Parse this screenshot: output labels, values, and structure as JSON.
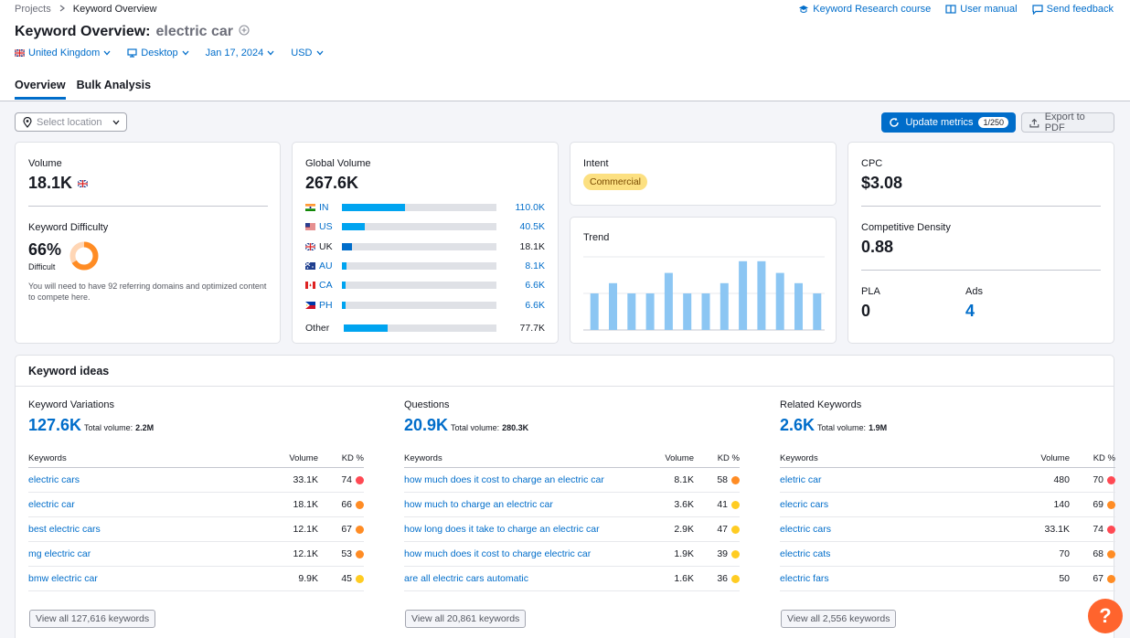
{
  "breadcrumb": {
    "root": "Projects",
    "current": "Keyword Overview"
  },
  "toplinks": {
    "course": "Keyword Research course",
    "manual": "User manual",
    "feedback": "Send feedback"
  },
  "header": {
    "title": "Keyword Overview:",
    "keyword": "electric car"
  },
  "filters": {
    "country": "United Kingdom",
    "device": "Desktop",
    "date": "Jan 17, 2024",
    "currency": "USD"
  },
  "tabs": [
    {
      "label": "Overview"
    },
    {
      "label": "Bulk Analysis"
    }
  ],
  "toolbar": {
    "location_placeholder": "Select location",
    "update_label": "Update metrics",
    "update_count": "1/250",
    "export_label": "Export to PDF"
  },
  "volume": {
    "label": "Volume",
    "value": "18.1K"
  },
  "difficulty": {
    "label": "Keyword Difficulty",
    "value": "66%",
    "value_pct": 66,
    "level": "Difficult",
    "note": "You will need to have 92 referring domains and optimized content to compete here."
  },
  "global_volume": {
    "label": "Global Volume",
    "value": "267.6K",
    "rows": [
      {
        "code": "IN",
        "value": "110.0K",
        "fraction": 0.41,
        "color": "#00a4f0"
      },
      {
        "code": "US",
        "value": "40.5K",
        "fraction": 0.15,
        "color": "#00a4f0"
      },
      {
        "code": "UK",
        "value": "18.1K",
        "fraction": 0.065,
        "color": "#006dca"
      },
      {
        "code": "AU",
        "value": "8.1K",
        "fraction": 0.03,
        "color": "#00a4f0"
      },
      {
        "code": "CA",
        "value": "6.6K",
        "fraction": 0.025,
        "color": "#00a4f0"
      },
      {
        "code": "PH",
        "value": "6.6K",
        "fraction": 0.025,
        "color": "#00a4f0"
      }
    ],
    "other": {
      "label": "Other",
      "value": "77.7K",
      "fraction": 0.29
    }
  },
  "intent": {
    "label": "Intent",
    "value": "Commercial"
  },
  "trend": {
    "label": "Trend",
    "values": [
      0.5,
      0.64,
      0.5,
      0.5,
      0.78,
      0.5,
      0.5,
      0.64,
      0.94,
      0.94,
      0.78,
      0.64,
      0.5
    ]
  },
  "cpc": {
    "label": "CPC",
    "value": "$3.08"
  },
  "density": {
    "label": "Competitive Density",
    "value": "0.88"
  },
  "pla": {
    "label": "PLA",
    "value": "0"
  },
  "ads": {
    "label": "Ads",
    "value": "4"
  },
  "ideas": {
    "title": "Keyword ideas",
    "columns": [
      {
        "title": "Keyword Variations",
        "count": "127.6K",
        "total_label": "Total volume:",
        "total": "2.2M",
        "h_kw": "Keywords",
        "h_vol": "Volume",
        "h_kd": "KD %",
        "rows": [
          {
            "kw": "electric cars",
            "vol": "33.1K",
            "kd": "74",
            "color": "#ff4953"
          },
          {
            "kw": "electric car",
            "vol": "18.1K",
            "kd": "66",
            "color": "#ff8c24"
          },
          {
            "kw": "best electric cars",
            "vol": "12.1K",
            "kd": "67",
            "color": "#ff8c24"
          },
          {
            "kw": "mg electric car",
            "vol": "12.1K",
            "kd": "53",
            "color": "#ff8c24"
          },
          {
            "kw": "bmw electric car",
            "vol": "9.9K",
            "kd": "45",
            "color": "#ffcc22"
          }
        ],
        "view_all": "View all 127,616 keywords"
      },
      {
        "title": "Questions",
        "count": "20.9K",
        "total_label": "Total volume:",
        "total": "280.3K",
        "h_kw": "Keywords",
        "h_vol": "Volume",
        "h_kd": "KD %",
        "rows": [
          {
            "kw": "how much does it cost to charge an electric car",
            "vol": "8.1K",
            "kd": "58",
            "color": "#ff8c24"
          },
          {
            "kw": "how much to charge an electric car",
            "vol": "3.6K",
            "kd": "41",
            "color": "#ffcc22"
          },
          {
            "kw": "how long does it take to charge an electric car",
            "vol": "2.9K",
            "kd": "47",
            "color": "#ffcc22"
          },
          {
            "kw": "how much does it cost to charge electric car",
            "vol": "1.9K",
            "kd": "39",
            "color": "#ffcc22"
          },
          {
            "kw": "are all electric cars automatic",
            "vol": "1.6K",
            "kd": "36",
            "color": "#ffcc22"
          }
        ],
        "view_all": "View all 20,861 keywords"
      },
      {
        "title": "Related Keywords",
        "count": "2.6K",
        "total_label": "Total volume:",
        "total": "1.9M",
        "h_kw": "Keywords",
        "h_vol": "Volume",
        "h_kd": "KD %",
        "rows": [
          {
            "kw": "eletric car",
            "vol": "480",
            "kd": "70",
            "color": "#ff4953"
          },
          {
            "kw": "elecric cars",
            "vol": "140",
            "kd": "69",
            "color": "#ff8c24"
          },
          {
            "kw": "electric cars",
            "vol": "33.1K",
            "kd": "74",
            "color": "#ff4953"
          },
          {
            "kw": "electric cats",
            "vol": "70",
            "kd": "68",
            "color": "#ff8c24"
          },
          {
            "kw": "electric fars",
            "vol": "50",
            "kd": "67",
            "color": "#ff8c24"
          }
        ],
        "view_all": "View all 2,556 keywords"
      }
    ]
  },
  "help": {
    "label": "?"
  }
}
